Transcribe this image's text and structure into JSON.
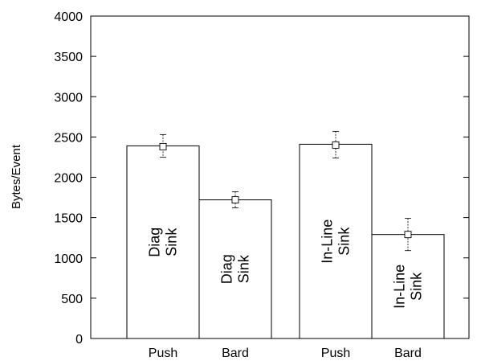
{
  "chart_data": {
    "type": "bar",
    "title": "",
    "xlabel": "",
    "ylabel": "Bytes/Event",
    "ylim": [
      0,
      4000
    ],
    "yticks": [
      0,
      500,
      1000,
      1500,
      2000,
      2500,
      3000,
      3500,
      4000
    ],
    "grid": false,
    "categories": [
      "Push",
      "Bard",
      "Push",
      "Bard"
    ],
    "bars": [
      {
        "category": "Push",
        "value": 2390,
        "point": 2380,
        "err_low": 2250,
        "err_high": 2530,
        "label": [
          "Diag",
          "Sink"
        ]
      },
      {
        "category": "Bard",
        "value": 1720,
        "point": 1720,
        "err_low": 1620,
        "err_high": 1820,
        "label": [
          "Diag",
          "Sink"
        ]
      },
      {
        "category": "Push",
        "value": 2410,
        "point": 2400,
        "err_low": 2240,
        "err_high": 2570,
        "label": [
          "In-Line",
          "Sink"
        ]
      },
      {
        "category": "Bard",
        "value": 1290,
        "point": 1290,
        "err_low": 1090,
        "err_high": 1490,
        "label": [
          "In-Line",
          "Sink"
        ]
      }
    ]
  }
}
